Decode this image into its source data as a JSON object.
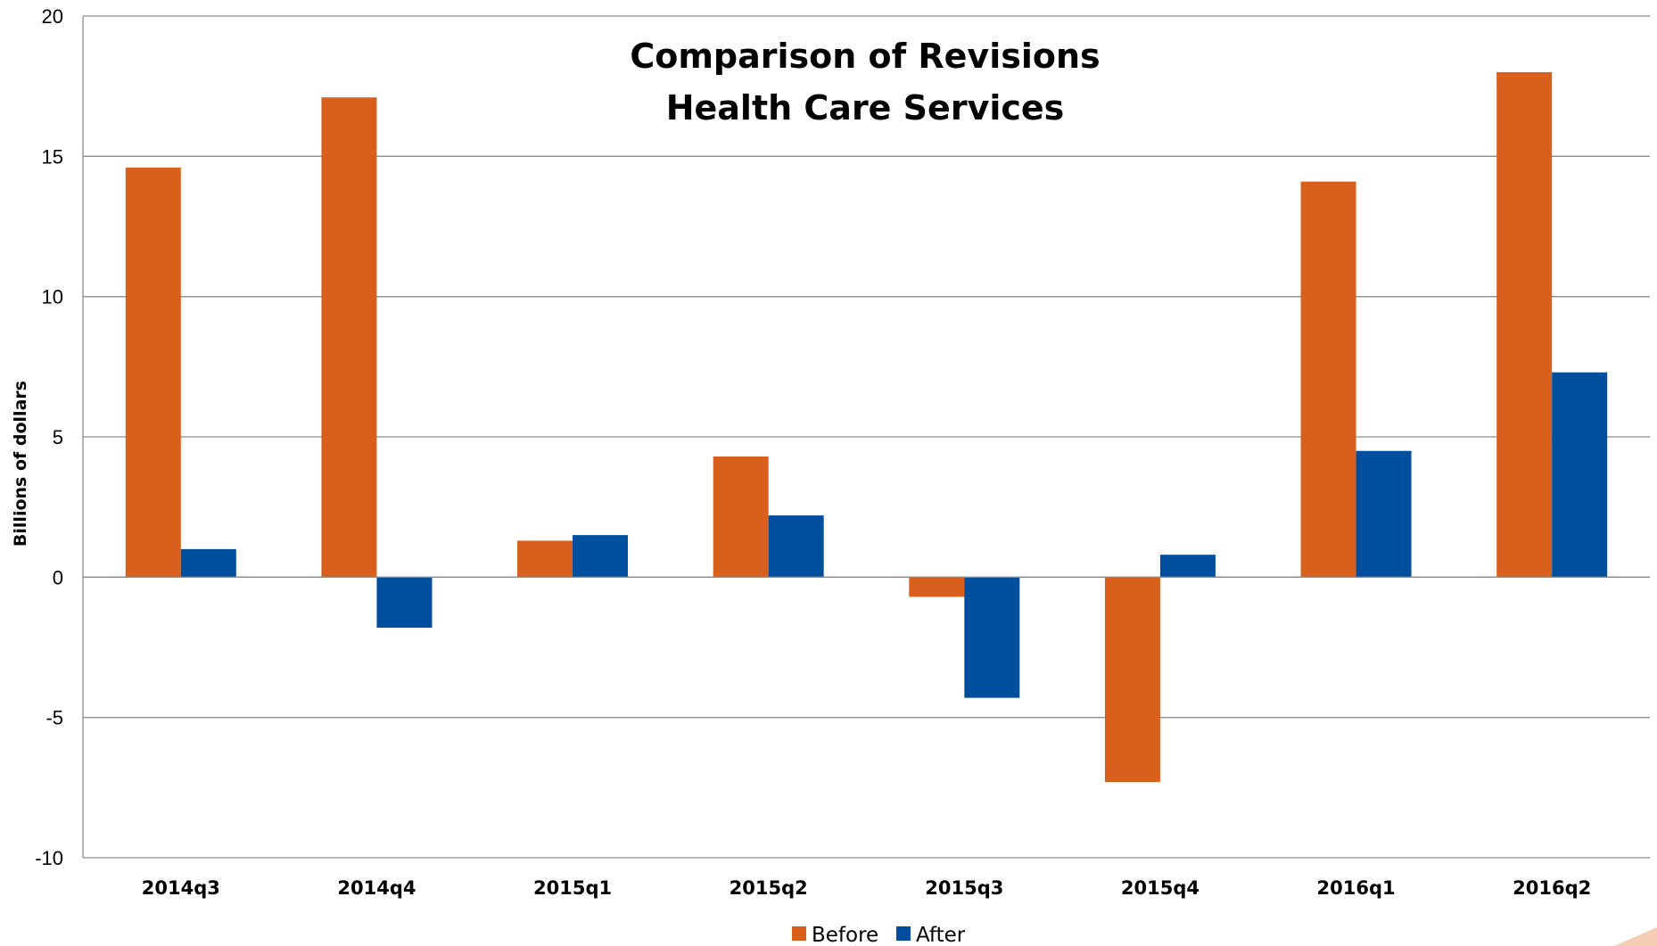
{
  "chart_data": {
    "type": "bar",
    "title_lines": [
      "Comparison of Revisions",
      "Health Care Services"
    ],
    "ylabel": "Billions of dollars",
    "xlabel": "",
    "categories": [
      "2014q3",
      "2014q4",
      "2015q1",
      "2015q2",
      "2015q3",
      "2015q4",
      "2016q1",
      "2016q2"
    ],
    "series": [
      {
        "name": "Before",
        "color": "#d9601c",
        "values": [
          14.6,
          17.1,
          1.3,
          4.3,
          -0.7,
          -7.3,
          14.1,
          18.0
        ]
      },
      {
        "name": "After",
        "color": "#004f9e",
        "values": [
          1.0,
          -1.8,
          1.5,
          2.2,
          -4.3,
          0.8,
          4.5,
          7.3
        ]
      }
    ],
    "ylim": [
      -10,
      20
    ],
    "yticks": [
      {
        "value": -10,
        "label": "-10"
      },
      {
        "value": -5,
        "label": "-5"
      },
      {
        "value": 0,
        "label": "0"
      },
      {
        "value": 5,
        "label": "5"
      },
      {
        "value": 10,
        "label": "10"
      },
      {
        "value": 15,
        "label": "15"
      },
      {
        "value": 20,
        "label": "20"
      }
    ],
    "grid": true,
    "legend_position": "bottom-center"
  }
}
